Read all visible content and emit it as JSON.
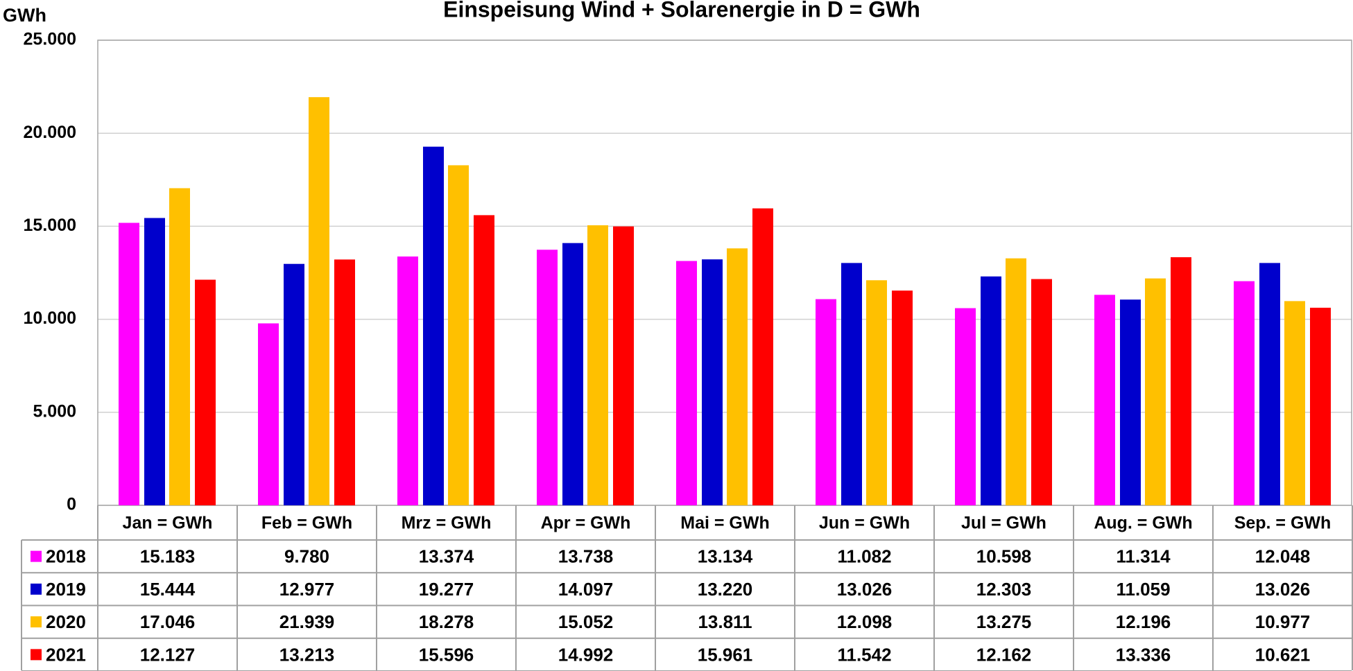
{
  "chart_data": {
    "type": "bar",
    "title": "Einspeisung Wind + Solarenergie in D  =  GWh",
    "y_label": "GWh",
    "categories": [
      "Jan = GWh",
      "Feb = GWh",
      "Mrz = GWh",
      "Apr = GWh",
      "Mai = GWh",
      "Jun = GWh",
      "Jul = GWh",
      "Aug. = GWh",
      "Sep. = GWh"
    ],
    "series": [
      {
        "name": "2018",
        "color": "#ff00ff",
        "values": [
          15183,
          9780,
          13374,
          13738,
          13134,
          11082,
          10598,
          11314,
          12048
        ],
        "value_labels": [
          "15.183",
          "9.780",
          "13.374",
          "13.738",
          "13.134",
          "11.082",
          "10.598",
          "11.314",
          "12.048"
        ]
      },
      {
        "name": "2019",
        "color": "#0000cc",
        "values": [
          15444,
          12977,
          19277,
          14097,
          13220,
          13026,
          12303,
          11059,
          13026
        ],
        "value_labels": [
          "15.444",
          "12.977",
          "19.277",
          "14.097",
          "13.220",
          "13.026",
          "12.303",
          "11.059",
          "13.026"
        ]
      },
      {
        "name": "2020",
        "color": "#ffc000",
        "values": [
          17046,
          21939,
          18278,
          15052,
          13811,
          12098,
          13275,
          12196,
          10977
        ],
        "value_labels": [
          "17.046",
          "21.939",
          "18.278",
          "15.052",
          "13.811",
          "12.098",
          "13.275",
          "12.196",
          "10.977"
        ]
      },
      {
        "name": "2021",
        "color": "#ff0000",
        "values": [
          12127,
          13213,
          15596,
          14992,
          15961,
          11542,
          12162,
          13336,
          10621
        ],
        "value_labels": [
          "12.127",
          "13.213",
          "15.596",
          "14.992",
          "15.961",
          "11.542",
          "12.162",
          "13.336",
          "10.621"
        ]
      }
    ],
    "ylim": [
      0,
      25000
    ],
    "yticks": [
      0,
      {
        "value": 5000,
        "label": "5.000"
      },
      {
        "value": 10000,
        "label": "10.000"
      },
      {
        "value": 15000,
        "label": "15.000"
      },
      {
        "value": 20000,
        "label": "20.000"
      },
      {
        "value": 25000,
        "label": "25.000"
      }
    ],
    "grid": true
  }
}
